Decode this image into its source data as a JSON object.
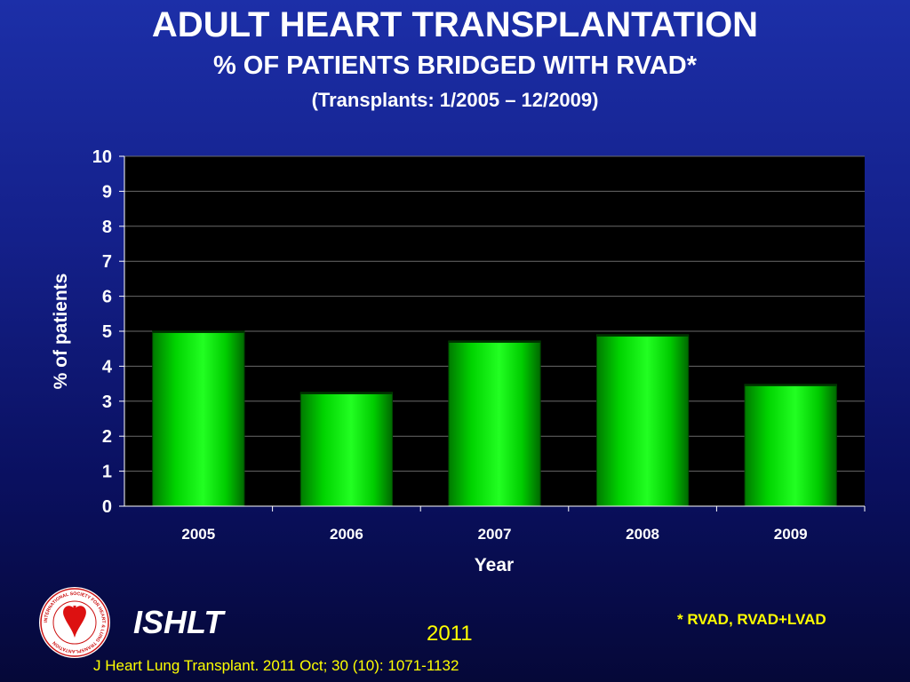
{
  "header": {
    "title": "ADULT HEART TRANSPLANTATION",
    "subtitle": "% OF PATIENTS BRIDGED WITH RVAD*",
    "period": "(Transplants: 1/2005 – 12/2009)"
  },
  "chart_data": {
    "type": "bar",
    "categories": [
      "2005",
      "2006",
      "2007",
      "2008",
      "2009"
    ],
    "values": [
      5.0,
      3.25,
      4.72,
      4.9,
      3.48
    ],
    "xlabel": "Year",
    "ylabel": "% of patients",
    "ylim": [
      0,
      10
    ],
    "yticks": [
      0,
      1,
      2,
      3,
      4,
      5,
      6,
      7,
      8,
      9,
      10
    ],
    "grid": true,
    "plot_background": "#000000",
    "bar_color": "#00ee00"
  },
  "footer": {
    "brand": "ISHLT",
    "year": "2011",
    "footnote": "* RVAD, RVAD+LVAD",
    "citation": "J Heart Lung Transplant. 2011 Oct; 30 (10): 1071-1132"
  },
  "logo": {
    "name": "ishlt-logo",
    "ring_text": "INTERNATIONAL SOCIETY FOR HEART & LUNG TRANSPLANTATION",
    "color": "#cc1111"
  }
}
